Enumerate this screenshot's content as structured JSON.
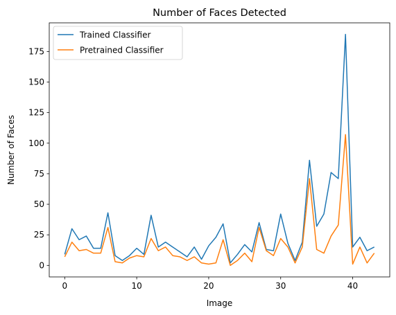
{
  "chart_data": {
    "type": "line",
    "title": "Number of Faces Detected",
    "xlabel": "Image",
    "ylabel": "Number of Faces",
    "xlim": [
      -2.15,
      45.15
    ],
    "ylim": [
      -9.45,
      198.45
    ],
    "xticks": [
      0,
      10,
      20,
      30,
      40
    ],
    "yticks": [
      0,
      25,
      50,
      75,
      100,
      125,
      150,
      175
    ],
    "grid": false,
    "legend_position": "upper-left",
    "x": [
      0,
      1,
      2,
      3,
      4,
      5,
      6,
      7,
      8,
      9,
      10,
      11,
      12,
      13,
      14,
      15,
      16,
      17,
      18,
      19,
      20,
      21,
      22,
      23,
      24,
      25,
      26,
      27,
      28,
      29,
      30,
      31,
      32,
      33,
      34,
      35,
      36,
      37,
      38,
      39,
      40,
      41,
      42,
      43
    ],
    "series": [
      {
        "name": "Trained Classifier",
        "color": "#1f77b4",
        "values": [
          9,
          30,
          21,
          24,
          14,
          14,
          43,
          8,
          4,
          8,
          14,
          9,
          41,
          15,
          19,
          15,
          11,
          7,
          15,
          5,
          16,
          23,
          34,
          2,
          9,
          17,
          11,
          35,
          13,
          12,
          42,
          18,
          4,
          19,
          86,
          32,
          42,
          76,
          71,
          189,
          15,
          23,
          12,
          15
        ]
      },
      {
        "name": "Pretrained Classifier",
        "color": "#ff7f0e",
        "values": [
          7,
          19,
          12,
          13,
          10,
          10,
          31,
          3,
          2,
          6,
          8,
          7,
          22,
          12,
          15,
          8,
          7,
          4,
          7,
          2,
          1,
          2,
          21,
          0,
          4,
          10,
          3,
          31,
          12,
          8,
          22,
          15,
          2,
          15,
          71,
          13,
          10,
          24,
          33,
          107,
          1,
          15,
          2,
          10
        ]
      }
    ]
  }
}
